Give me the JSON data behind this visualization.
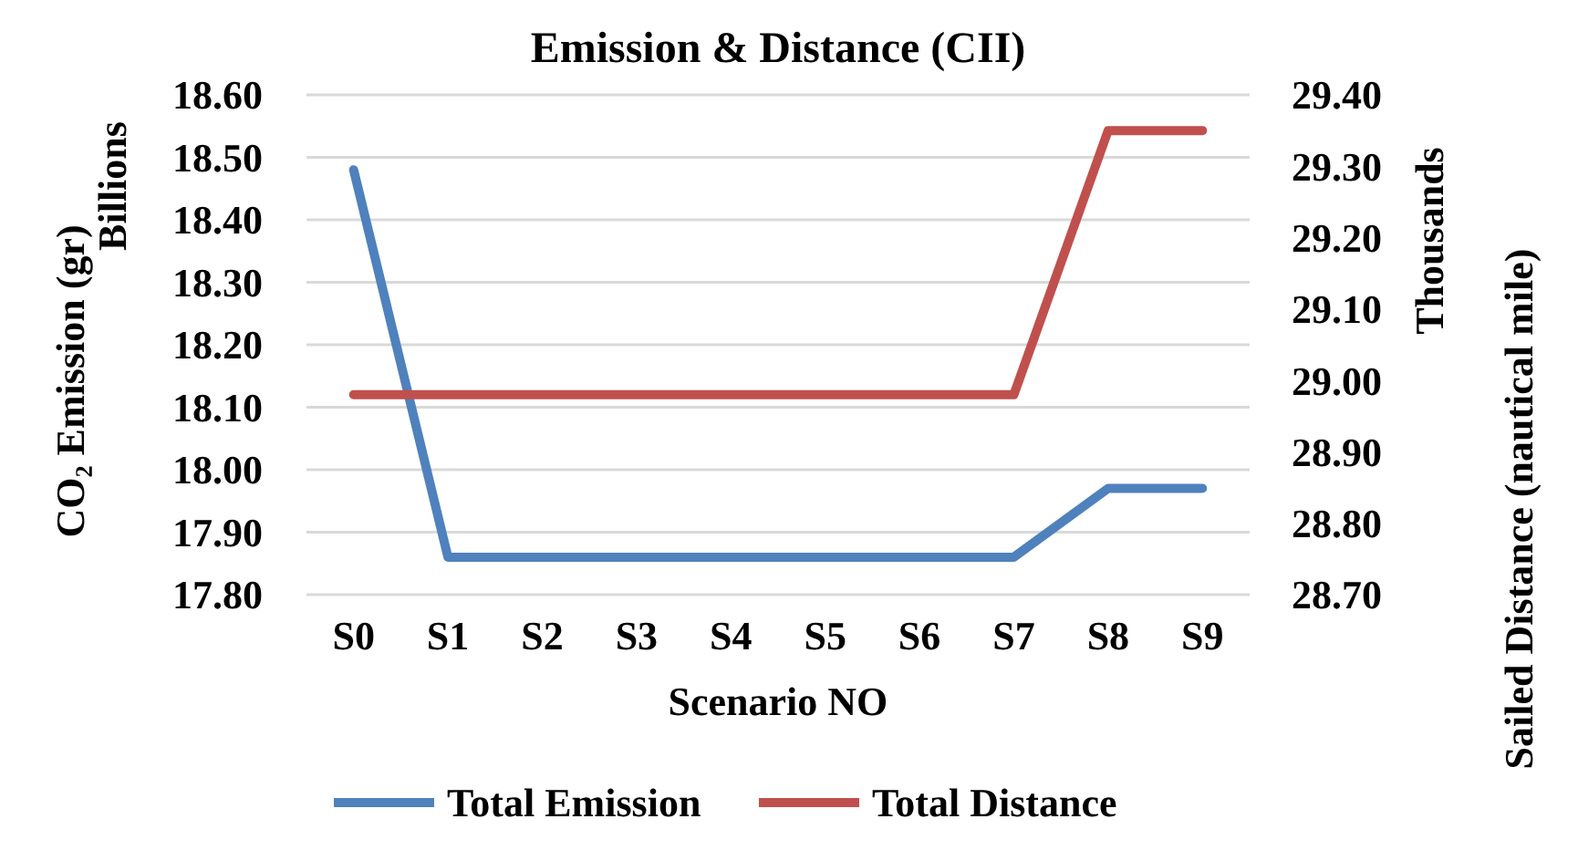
{
  "chart_data": {
    "type": "line",
    "title": "Emission & Distance (CII)",
    "xlabel": "Scenario NO",
    "ylabel": "CO₂ Emission (gr)",
    "y2label": "Sailed Distance (nautical mile)",
    "annotations": [
      "Billions",
      "Thousands"
    ],
    "categories": [
      "S0",
      "S1",
      "S2",
      "S3",
      "S4",
      "S5",
      "S6",
      "S7",
      "S8",
      "S9"
    ],
    "series": [
      {
        "name": "Total Emission",
        "color": "#4f81bd",
        "values": [
          18.48,
          17.86,
          17.86,
          17.86,
          17.86,
          17.86,
          17.86,
          17.86,
          17.97,
          17.97
        ]
      },
      {
        "name": "Total Distance",
        "color": "#c0504d",
        "axis": "y2",
        "values": [
          28.98,
          28.98,
          28.98,
          28.98,
          28.98,
          28.98,
          28.98,
          28.98,
          29.35,
          29.35
        ]
      }
    ],
    "ylim": [
      17.8,
      18.6
    ],
    "yticks": [
      {
        "value": 17.8,
        "label": "17.80"
      },
      {
        "value": 17.9,
        "label": "17.90"
      },
      {
        "value": 18.0,
        "label": "18.00"
      },
      {
        "value": 18.1,
        "label": "18.10"
      },
      {
        "value": 18.2,
        "label": "18.20"
      },
      {
        "value": 18.3,
        "label": "18.30"
      },
      {
        "value": 18.4,
        "label": "18.40"
      },
      {
        "value": 18.5,
        "label": "18.50"
      },
      {
        "value": 18.6,
        "label": "18.60"
      }
    ],
    "y2lim": [
      28.7,
      29.4
    ],
    "y2ticks": [
      {
        "value": 28.7,
        "label": "28.70"
      },
      {
        "value": 28.8,
        "label": "28.80"
      },
      {
        "value": 28.9,
        "label": "28.90"
      },
      {
        "value": 29.0,
        "label": "29.00"
      },
      {
        "value": 29.1,
        "label": "29.10"
      },
      {
        "value": 29.2,
        "label": "29.20"
      },
      {
        "value": 29.3,
        "label": "29.30"
      },
      {
        "value": 29.4,
        "label": "29.40"
      }
    ],
    "grid": "y",
    "legend": "bottom",
    "marker": "none",
    "line_style": "solid"
  }
}
